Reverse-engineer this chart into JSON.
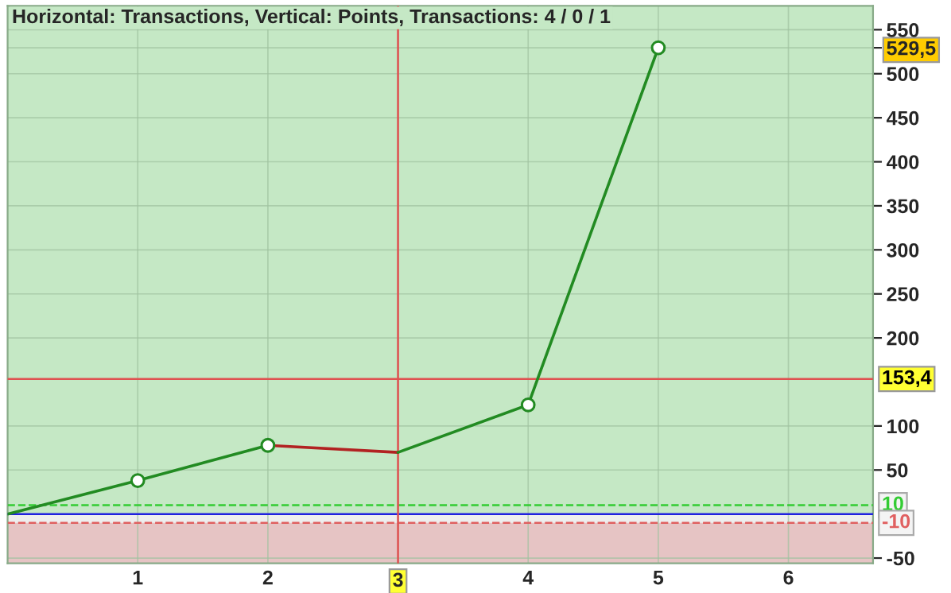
{
  "chart_data": {
    "type": "line",
    "title": "Horizontal: Transactions, Vertical: Points, Transactions: 4 / 0 / 1",
    "series": [
      {
        "color": "#228b22",
        "x": [
          0,
          1,
          2
        ],
        "values": [
          0,
          38,
          78
        ]
      },
      {
        "color": "#b22222",
        "x": [
          2,
          3
        ],
        "values": [
          78,
          70
        ]
      },
      {
        "color": "#228b22",
        "x": [
          3,
          4,
          5
        ],
        "values": [
          70,
          124,
          529.5
        ]
      },
      {
        "type": "scatter",
        "color": "#228b22",
        "x": [
          1,
          2,
          4,
          5
        ],
        "values": [
          38,
          78,
          124,
          529.5
        ],
        "marker": "circle"
      }
    ],
    "bands": [
      {
        "axis": "y",
        "from": 0,
        "to": 577,
        "color": "#c5e8c5"
      },
      {
        "axis": "y",
        "from": -56,
        "to": -10,
        "color": "#e6c4c4"
      }
    ],
    "ref_lines": [
      {
        "axis": "y",
        "value": 0,
        "color": "#2020e0",
        "line_style": "solid"
      },
      {
        "axis": "y",
        "value": 10,
        "label": "10",
        "color": "#33cc33",
        "line_style": "dashed"
      },
      {
        "axis": "y",
        "value": -10,
        "label": "-10",
        "color": "#e06060",
        "line_style": "dashed"
      },
      {
        "axis": "x",
        "value": 3,
        "label": "3",
        "color": "#e05050",
        "line_style": "solid"
      },
      {
        "axis": "y",
        "value": 153.4,
        "label": "153,4",
        "color": "#e05050",
        "line_style": "solid"
      }
    ],
    "xlim": [
      0,
      6.65
    ],
    "xticks": [
      1,
      2,
      3,
      4,
      5,
      6
    ],
    "ylim": [
      -56,
      577
    ],
    "yticks": [
      -50,
      50,
      100,
      200,
      250,
      300,
      350,
      400,
      450,
      500,
      {
        "value": 529.5,
        "label": "529,5"
      },
      550
    ],
    "grid": true
  }
}
